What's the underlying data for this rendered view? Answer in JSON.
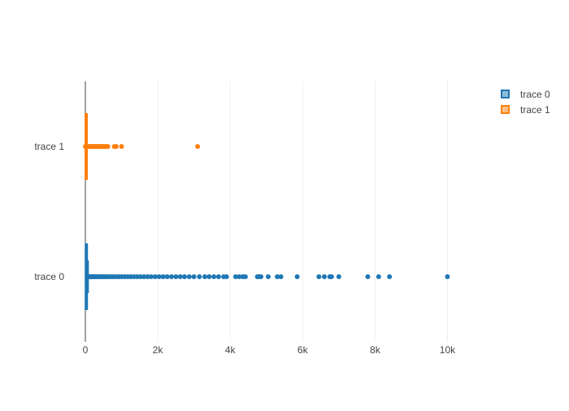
{
  "chart_data": {
    "type": "box",
    "orientation": "horizontal",
    "title": "",
    "xlabel": "",
    "ylabel": "",
    "x_axis": {
      "range": [
        0,
        11000
      ],
      "ticks": [
        0,
        2000,
        4000,
        6000,
        8000,
        10000
      ],
      "tick_labels": [
        "0",
        "2k",
        "4k",
        "6k",
        "8k",
        "10k"
      ],
      "grid": true
    },
    "categories": [
      "trace 0",
      "trace 1"
    ],
    "legend_placement": "top-right",
    "series": [
      {
        "name": "trace 0",
        "color": "#1f77b4",
        "box": {
          "min": 0,
          "q1": 5,
          "median": 12,
          "q3": 35,
          "whisker_high": 75
        },
        "outliers": [
          80,
          95,
          110,
          125,
          140,
          160,
          180,
          200,
          230,
          260,
          290,
          320,
          360,
          400,
          440,
          480,
          520,
          570,
          620,
          680,
          740,
          800,
          870,
          940,
          1010,
          1090,
          1170,
          1250,
          1340,
          1430,
          1520,
          1620,
          1720,
          1820,
          1930,
          2040,
          2150,
          2260,
          2380,
          2500,
          2620,
          2740,
          2870,
          3000,
          3150,
          3300,
          3420,
          3550,
          3680,
          3820,
          3900,
          4150,
          4250,
          4350,
          4420,
          4750,
          4800,
          4850,
          5050,
          5300,
          5400,
          5850,
          6450,
          6600,
          6750,
          6800,
          7000,
          7800,
          8100,
          8400,
          10000
        ]
      },
      {
        "name": "trace 1",
        "color": "#ff7f0e",
        "box": {
          "min": 0,
          "q1": 2,
          "median": 5,
          "q3": 12,
          "whisker_high": 25
        },
        "outliers": [
          0,
          20,
          40,
          60,
          80,
          100,
          130,
          160,
          190,
          220,
          260,
          300,
          340,
          380,
          420,
          460,
          500,
          540,
          580,
          620,
          800,
          850,
          1000,
          3100
        ]
      }
    ]
  }
}
